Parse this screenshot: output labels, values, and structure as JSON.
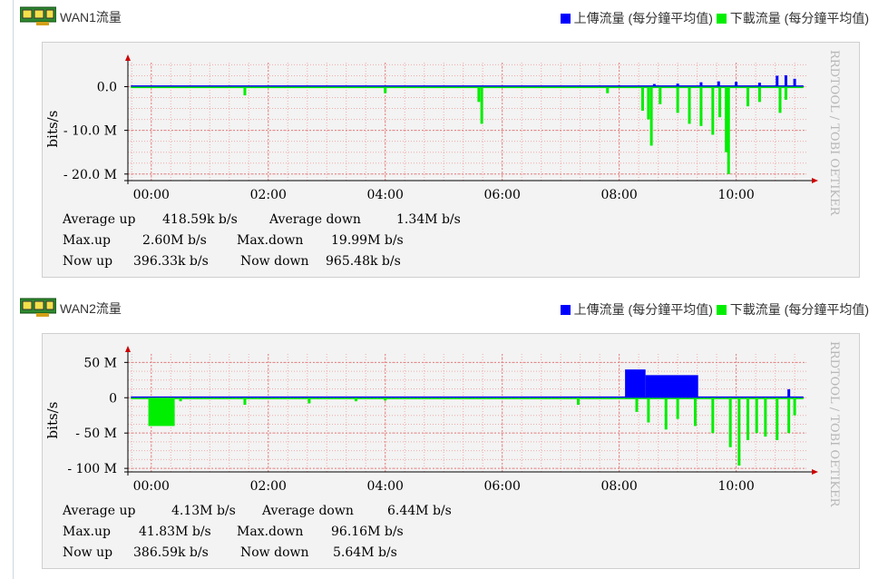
{
  "charts": [
    {
      "title": "WAN1流量",
      "legend_up": "上傳流量 (每分鐘平均值)",
      "legend_down": "下載流量 (每分鐘平均值)",
      "watermark": "RRDTOOL / TOBI OETIKER",
      "stats": {
        "avg_up_label": "Average up",
        "avg_up": "418.59k b/s",
        "avg_down_label": "Average down",
        "avg_down": "1.34M b/s",
        "max_up_label": "Max.up",
        "max_up": "2.60M b/s",
        "max_down_label": "Max.down",
        "max_down": "19.99M b/s",
        "now_up_label": "Now up",
        "now_up": "396.33k b/s",
        "now_down_label": "Now down",
        "now_down": "965.48k b/s"
      }
    },
    {
      "title": "WAN2流量",
      "legend_up": "上傳流量 (每分鐘平均值)",
      "legend_down": "下載流量 (每分鐘平均值)",
      "watermark": "RRDTOOL / TOBI OETIKER",
      "stats": {
        "avg_up_label": "Average up",
        "avg_up": "4.13M b/s",
        "avg_down_label": "Average down",
        "avg_down": "6.44M b/s",
        "max_up_label": "Max.up",
        "max_up": "41.83M b/s",
        "max_down_label": "Max.down",
        "max_down": "96.16M b/s",
        "now_up_label": "Now up",
        "now_up": "386.59k b/s",
        "now_down_label": "Now down",
        "now_down": "5.64M b/s"
      }
    }
  ],
  "colors": {
    "upload": "#0000ff",
    "download": "#00ee00",
    "axis": "#cc0000",
    "grid": "#f2aaaa"
  },
  "chart_data": [
    {
      "type": "area",
      "ylabel": "bits/s",
      "y_ticks": [
        {
          "v": 0,
          "label": "0.0"
        },
        {
          "v": -10,
          "label": "- 10.0 M"
        },
        {
          "v": -20,
          "label": "- 20.0 M"
        }
      ],
      "ylim": [
        -21.5,
        5.5
      ],
      "x_ticks": [
        {
          "h": 0,
          "label": "00:00"
        },
        {
          "h": 2,
          "label": "02:00"
        },
        {
          "h": 4,
          "label": "04:00"
        },
        {
          "h": 6,
          "label": "06:00"
        },
        {
          "h": 8,
          "label": "08:00"
        },
        {
          "h": 10,
          "label": "10:00"
        }
      ],
      "xlim": [
        -0.4,
        11.2
      ],
      "unit": "Mbit/s",
      "down_spikes": [
        [
          1.6,
          -2.0
        ],
        [
          4.0,
          -1.5
        ],
        [
          5.6,
          -3.5
        ],
        [
          5.65,
          -8.5
        ],
        [
          7.8,
          -1.5
        ],
        [
          8.4,
          -5.5
        ],
        [
          8.5,
          -7.5
        ],
        [
          8.55,
          -13.5
        ],
        [
          8.7,
          -4.0
        ],
        [
          9.0,
          -6.0
        ],
        [
          9.2,
          -8.5
        ],
        [
          9.4,
          -9.0
        ],
        [
          9.6,
          -11.0
        ],
        [
          9.72,
          -7.0
        ],
        [
          9.83,
          -15.0
        ],
        [
          9.87,
          -20.0
        ],
        [
          10.2,
          -4.5
        ],
        [
          10.4,
          -3.5
        ],
        [
          10.75,
          -6.0
        ],
        [
          10.85,
          -3.0
        ]
      ],
      "up_spikes": [
        [
          8.0,
          0.3
        ],
        [
          8.6,
          0.6
        ],
        [
          9.0,
          0.7
        ],
        [
          9.4,
          1.0
        ],
        [
          9.7,
          1.2
        ],
        [
          10.0,
          1.1
        ],
        [
          10.4,
          0.9
        ],
        [
          10.7,
          2.5
        ],
        [
          10.85,
          2.6
        ],
        [
          11.0,
          1.8
        ]
      ]
    },
    {
      "type": "area",
      "ylabel": "bits/s",
      "y_ticks": [
        {
          "v": 50,
          "label": "50 M"
        },
        {
          "v": 0,
          "label": "0"
        },
        {
          "v": -50,
          "label": "- 50 M"
        },
        {
          "v": -100,
          "label": "- 100 M"
        }
      ],
      "ylim": [
        -105,
        62
      ],
      "x_ticks": [
        {
          "h": 0,
          "label": "00:00"
        },
        {
          "h": 2,
          "label": "02:00"
        },
        {
          "h": 4,
          "label": "04:00"
        },
        {
          "h": 6,
          "label": "06:00"
        },
        {
          "h": 8,
          "label": "08:00"
        },
        {
          "h": 10,
          "label": "10:00"
        }
      ],
      "xlim": [
        -0.4,
        11.2
      ],
      "unit": "Mbit/s",
      "down_blocks": [
        [
          -0.05,
          0.4,
          -40
        ]
      ],
      "down_spikes": [
        [
          0.5,
          -5.0
        ],
        [
          1.6,
          -10.0
        ],
        [
          2.7,
          -8.0
        ],
        [
          3.5,
          -5.0
        ],
        [
          4.0,
          -4.0
        ],
        [
          7.3,
          -10.0
        ],
        [
          8.3,
          -20.0
        ],
        [
          8.5,
          -35.0
        ],
        [
          8.8,
          -45.0
        ],
        [
          9.0,
          -30.0
        ],
        [
          9.3,
          -40.0
        ],
        [
          9.6,
          -50.0
        ],
        [
          9.9,
          -70.0
        ],
        [
          10.05,
          -96.0
        ],
        [
          10.2,
          -60.0
        ],
        [
          10.35,
          -50.0
        ],
        [
          10.5,
          -55.0
        ],
        [
          10.7,
          -60.0
        ],
        [
          10.9,
          -50.0
        ],
        [
          11.0,
          -25.0
        ]
      ],
      "up_blocks": [
        [
          8.1,
          8.45,
          40
        ],
        [
          8.45,
          9.35,
          32
        ]
      ],
      "up_spikes": [
        [
          10.9,
          12.0
        ]
      ]
    }
  ]
}
